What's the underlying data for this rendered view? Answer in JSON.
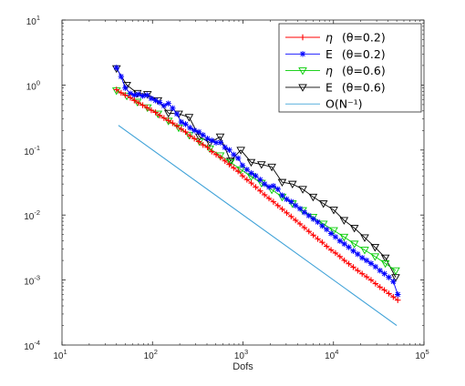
{
  "chart_data": {
    "type": "line",
    "xscale": "log",
    "yscale": "log",
    "xlim": [
      10,
      100000
    ],
    "ylim": [
      0.0001,
      10
    ],
    "xlabel": "Dofs",
    "ylabel": "",
    "grid": false,
    "legend_position": "top-right",
    "x_ticks": [
      {
        "base": "10",
        "exp": "1"
      },
      {
        "base": "10",
        "exp": "2"
      },
      {
        "base": "10",
        "exp": "3"
      },
      {
        "base": "10",
        "exp": "4"
      },
      {
        "base": "10",
        "exp": "5"
      }
    ],
    "y_ticks": [
      {
        "base": "10",
        "exp": "-4"
      },
      {
        "base": "10",
        "exp": "-3"
      },
      {
        "base": "10",
        "exp": "-2"
      },
      {
        "base": "10",
        "exp": "-1"
      },
      {
        "base": "10",
        "exp": "0"
      },
      {
        "base": "10",
        "exp": "1"
      }
    ],
    "legend": [
      {
        "sym": "η",
        "text": "(θ=0.2)"
      },
      {
        "sym": "E",
        "text": "(θ=0.2)"
      },
      {
        "sym": "η",
        "text": "(θ=0.6)"
      },
      {
        "sym": "E",
        "text": "(θ=0.6)"
      },
      {
        "sym": "",
        "text": "O(N⁻¹)"
      }
    ],
    "series": [
      {
        "name": "η (θ=0.2)",
        "color": "#ff0000",
        "marker": "plus",
        "x": [
          40,
          45,
          50,
          57,
          63,
          70,
          78,
          87,
          97,
          108,
          120,
          134,
          150,
          167,
          186,
          208,
          232,
          260,
          290,
          325,
          362,
          405,
          452,
          505,
          565,
          632,
          706,
          790,
          883,
          988,
          1105,
          1236,
          1383,
          1548,
          1732,
          1938,
          2169,
          2428,
          2718,
          3042,
          3405,
          3811,
          4266,
          4775,
          5345,
          5984,
          6700,
          7500,
          8400,
          9400,
          10520,
          11780,
          13190,
          14770,
          16540,
          18520,
          20740,
          23230,
          26010,
          29130,
          32620,
          36530,
          40910,
          45820,
          51320
        ],
        "y": [
          0.85,
          0.76,
          0.7,
          0.64,
          0.58,
          0.53,
          0.49,
          0.45,
          0.41,
          0.38,
          0.34,
          0.31,
          0.285,
          0.26,
          0.235,
          0.21,
          0.19,
          0.165,
          0.15,
          0.135,
          0.12,
          0.11,
          0.095,
          0.085,
          0.077,
          0.068,
          0.06,
          0.053,
          0.047,
          0.04,
          0.035,
          0.031,
          0.027,
          0.0235,
          0.0205,
          0.018,
          0.016,
          0.014,
          0.0123,
          0.0108,
          0.0095,
          0.0083,
          0.0073,
          0.0064,
          0.0056,
          0.0049,
          0.0043,
          0.0038,
          0.0033,
          0.0029,
          0.0026,
          0.0023,
          0.002,
          0.00178,
          0.00158,
          0.0014,
          0.00125,
          0.00112,
          0.001,
          0.00088,
          0.00078,
          0.0007,
          0.00062,
          0.00055,
          0.00049
        ]
      },
      {
        "name": "E (θ=0.2)",
        "color": "#0000ff",
        "marker": "star",
        "x": [
          40,
          45,
          50,
          57,
          63,
          70,
          78,
          87,
          97,
          108,
          120,
          134,
          150,
          167,
          186,
          208,
          232,
          260,
          290,
          325,
          362,
          405,
          452,
          505,
          565,
          632,
          706,
          790,
          883,
          988,
          1105,
          1236,
          1383,
          1548,
          1732,
          1938,
          2169,
          2428,
          2718,
          3042,
          3405,
          3811,
          4266,
          4775,
          5345,
          5984,
          6700,
          7500,
          8400,
          9400,
          10520,
          11780,
          13190,
          14770,
          16540,
          18520,
          20740,
          23230,
          26010,
          29130,
          32620,
          36530,
          40910,
          45820,
          51320
        ],
        "y": [
          1.85,
          1.35,
          0.9,
          0.74,
          0.7,
          0.72,
          0.68,
          0.7,
          0.62,
          0.58,
          0.54,
          0.48,
          0.52,
          0.44,
          0.36,
          0.27,
          0.25,
          0.22,
          0.2,
          0.19,
          0.17,
          0.15,
          0.14,
          0.13,
          0.13,
          0.11,
          0.1,
          0.085,
          0.075,
          0.058,
          0.05,
          0.044,
          0.04,
          0.035,
          0.03,
          0.027,
          0.028,
          0.025,
          0.02,
          0.0175,
          0.016,
          0.014,
          0.0125,
          0.011,
          0.0098,
          0.0087,
          0.0078,
          0.0068,
          0.006,
          0.0052,
          0.0046,
          0.004,
          0.0036,
          0.0032,
          0.0028,
          0.0025,
          0.0022,
          0.002,
          0.0018,
          0.0016,
          0.0014,
          0.00125,
          0.0011,
          0.00095,
          0.0006
        ]
      },
      {
        "name": "η (θ=0.6)",
        "color": "#00cc00",
        "marker": "triangle-down",
        "x": [
          40,
          52,
          68,
          88,
          115,
          150,
          195,
          254,
          330,
          430,
          560,
          728,
          947,
          1231,
          1601,
          2082,
          2707,
          3520,
          4577,
          5952,
          7740,
          10065,
          13090,
          17020,
          22130,
          28780,
          37420,
          48660
        ],
        "y": [
          0.82,
          0.68,
          0.55,
          0.45,
          0.36,
          0.28,
          0.22,
          0.17,
          0.135,
          0.105,
          0.082,
          0.065,
          0.05,
          0.039,
          0.031,
          0.0245,
          0.019,
          0.015,
          0.0118,
          0.0093,
          0.0073,
          0.0058,
          0.0046,
          0.0036,
          0.0029,
          0.0023,
          0.0018,
          0.0014
        ]
      },
      {
        "name": "E (θ=0.6)",
        "color": "#000000",
        "marker": "triangle-down",
        "x": [
          40,
          52,
          68,
          88,
          115,
          150,
          195,
          254,
          330,
          430,
          560,
          728,
          947,
          1231,
          1601,
          2082,
          2707,
          3520,
          4577,
          5952,
          7740,
          10065,
          13090,
          17020,
          22130,
          28780,
          37420,
          48660
        ],
        "y": [
          1.8,
          1.0,
          0.75,
          0.72,
          0.58,
          0.37,
          0.36,
          0.32,
          0.16,
          0.13,
          0.16,
          0.068,
          0.1,
          0.065,
          0.06,
          0.055,
          0.032,
          0.03,
          0.025,
          0.019,
          0.015,
          0.012,
          0.0083,
          0.0063,
          0.0045,
          0.0032,
          0.0022,
          0.0011
        ]
      },
      {
        "name": "O(N⁻¹)",
        "color": "#3fa2d8",
        "marker": "none",
        "x": [
          42,
          50000
        ],
        "y": [
          0.24,
          0.0002
        ]
      }
    ]
  }
}
